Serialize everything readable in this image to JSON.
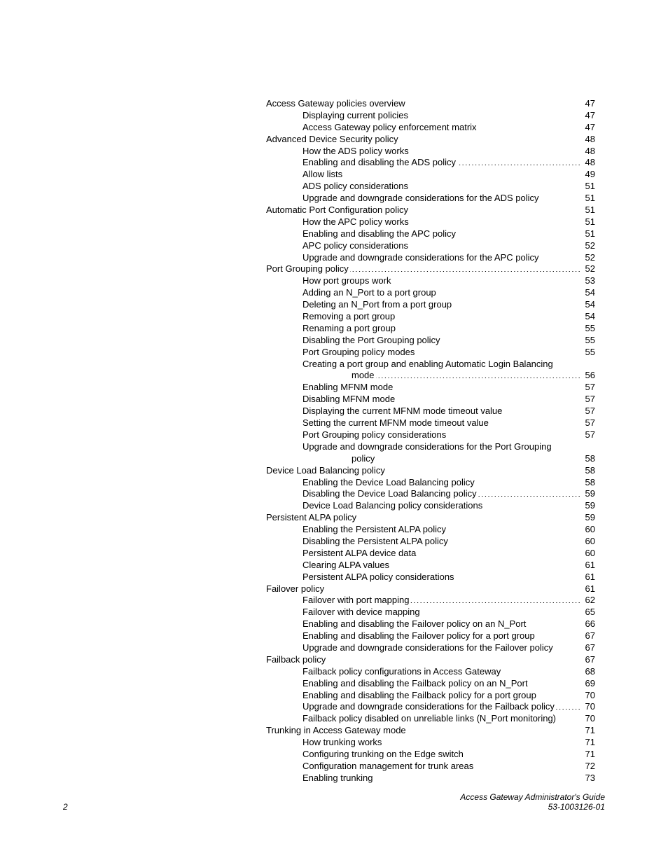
{
  "toc": [
    {
      "level": 0,
      "title": "Access Gateway policies overview",
      "page": "47"
    },
    {
      "level": 1,
      "title": "Displaying current policies",
      "page": "47"
    },
    {
      "level": 1,
      "title": "Access Gateway policy enforcement matrix",
      "page": "47"
    },
    {
      "level": 0,
      "title": "Advanced Device Security policy",
      "page": "48"
    },
    {
      "level": 1,
      "title": "How the ADS policy works",
      "page": "48"
    },
    {
      "level": 1,
      "title": "Enabling and disabling the ADS policy",
      "page": "48"
    },
    {
      "level": 1,
      "title": "Allow lists",
      "page": "49"
    },
    {
      "level": 1,
      "title": "ADS policy considerations",
      "page": "51"
    },
    {
      "level": 1,
      "title": "Upgrade and downgrade considerations for the ADS policy",
      "page": "51"
    },
    {
      "level": 0,
      "title": "Automatic Port Configuration policy",
      "page": "51"
    },
    {
      "level": 1,
      "title": "How the APC policy works",
      "page": "51"
    },
    {
      "level": 1,
      "title": "Enabling and disabling the APC policy",
      "page": "51"
    },
    {
      "level": 1,
      "title": "APC policy considerations",
      "page": "52"
    },
    {
      "level": 1,
      "title": "Upgrade and downgrade considerations for the APC policy",
      "page": "52"
    },
    {
      "level": 0,
      "title": "Port Grouping policy",
      "page": "52"
    },
    {
      "level": 1,
      "title": "How port groups work",
      "page": "53"
    },
    {
      "level": 1,
      "title": "Adding an N_Port to a port group",
      "page": "54"
    },
    {
      "level": 1,
      "title": "Deleting an N_Port from a port group",
      "page": "54"
    },
    {
      "level": 1,
      "title": "Removing a port group",
      "page": "54"
    },
    {
      "level": 1,
      "title": "Renaming a port group",
      "page": "55"
    },
    {
      "level": 1,
      "title": "Disabling the Port Grouping policy",
      "page": "55"
    },
    {
      "level": 1,
      "title": "Port Grouping policy modes",
      "page": "55"
    },
    {
      "level": 1,
      "title": "Creating a port group and enabling Automatic Login Balancing",
      "page": ""
    },
    {
      "level": 2,
      "title": "mode",
      "page": "56"
    },
    {
      "level": 1,
      "title": "Enabling MFNM mode",
      "page": "57"
    },
    {
      "level": 1,
      "title": "Disabling MFNM mode",
      "page": "57"
    },
    {
      "level": 1,
      "title": "Displaying the current MFNM mode timeout value",
      "page": "57"
    },
    {
      "level": 1,
      "title": "Setting the current MFNM mode timeout value",
      "page": "57"
    },
    {
      "level": 1,
      "title": "Port Grouping policy considerations",
      "page": "57"
    },
    {
      "level": 1,
      "title": "Upgrade and downgrade considerations for the Port Grouping",
      "page": ""
    },
    {
      "level": 2,
      "title": "policy",
      "page": "58"
    },
    {
      "level": 0,
      "title": "Device Load Balancing policy",
      "page": "58"
    },
    {
      "level": 1,
      "title": "Enabling the Device Load Balancing policy",
      "page": "58"
    },
    {
      "level": 1,
      "title": "Disabling the Device Load Balancing policy",
      "page": "59"
    },
    {
      "level": 1,
      "title": "Device Load Balancing policy considerations",
      "page": "59"
    },
    {
      "level": 0,
      "title": "Persistent ALPA policy",
      "page": "59"
    },
    {
      "level": 1,
      "title": "Enabling the Persistent ALPA policy",
      "page": "60"
    },
    {
      "level": 1,
      "title": "Disabling the Persistent ALPA policy",
      "page": "60"
    },
    {
      "level": 1,
      "title": "Persistent ALPA device data",
      "page": "60"
    },
    {
      "level": 1,
      "title": "Clearing ALPA values",
      "page": "61"
    },
    {
      "level": 1,
      "title": "Persistent ALPA policy considerations",
      "page": "61"
    },
    {
      "level": 0,
      "title": "Failover policy",
      "page": "61"
    },
    {
      "level": 1,
      "title": "Failover with port mapping",
      "page": "62"
    },
    {
      "level": 1,
      "title": "Failover with device mapping",
      "page": "65"
    },
    {
      "level": 1,
      "title": "Enabling and disabling the Failover policy on an N_Port",
      "page": "66"
    },
    {
      "level": 1,
      "title": "Enabling and disabling the Failover policy for a port group",
      "page": "67"
    },
    {
      "level": 1,
      "title": "Upgrade and downgrade considerations for the Failover policy",
      "page": "67"
    },
    {
      "level": 0,
      "title": "Failback policy",
      "page": "67"
    },
    {
      "level": 1,
      "title": "Failback policy configurations in Access Gateway",
      "page": "68"
    },
    {
      "level": 1,
      "title": "Enabling and disabling the Failback policy on an N_Port",
      "page": "69"
    },
    {
      "level": 1,
      "title": "Enabling and disabling the Failback policy for a port group",
      "page": "70"
    },
    {
      "level": 1,
      "title": "Upgrade and downgrade considerations for the Failback policy",
      "page": "70"
    },
    {
      "level": 1,
      "title": "Failback policy disabled on unreliable links (N_Port monitoring)",
      "page": "70"
    },
    {
      "level": 0,
      "title": "Trunking in Access Gateway mode",
      "page": "71"
    },
    {
      "level": 1,
      "title": "How trunking works",
      "page": "71"
    },
    {
      "level": 1,
      "title": "Configuring trunking on the Edge switch",
      "page": "71"
    },
    {
      "level": 1,
      "title": "Configuration management for trunk areas",
      "page": "72"
    },
    {
      "level": 1,
      "title": "Enabling trunking",
      "page": "73"
    }
  ],
  "footer": {
    "page_number": "2",
    "doc_title": "Access Gateway Administrator's Guide",
    "doc_id": "53-1003126-01"
  }
}
